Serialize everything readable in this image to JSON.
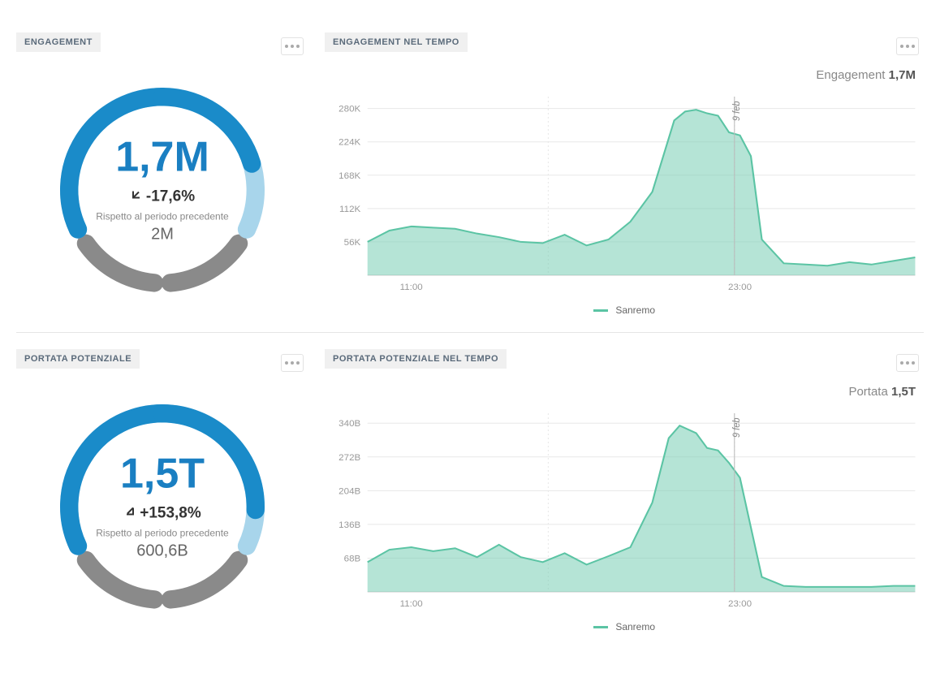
{
  "engagement": {
    "title": "ENGAGEMENT",
    "gauge": {
      "value": "1,7M",
      "change_text": "-17,6%",
      "change_direction": "down",
      "sub_label": "Rispetto al periodo precedente",
      "prev_value": "2M",
      "value_color": "#1a7fc2",
      "arc_primary_color": "#1a8bc9",
      "arc_secondary_color": "#a8d5eb",
      "arc_track_color": "#8a8a8a",
      "fill_ratio": 0.82
    },
    "chart": {
      "title": "ENGAGEMENT NEL TEMPO",
      "header_label": "Engagement",
      "header_value": "1,7M",
      "series_name": "Sanremo",
      "series_color": "#5bc4a4",
      "fill_color": "rgba(121, 206, 180, 0.55)",
      "grid_color": "#e8e8e8",
      "y_ticks": [
        "56K",
        "112K",
        "168K",
        "224K",
        "280K"
      ],
      "y_values": [
        56,
        112,
        168,
        224,
        280
      ],
      "y_max": 300,
      "x_ticks": [
        "11:00",
        "23:00"
      ],
      "x_tick_positions": [
        0.08,
        0.68
      ],
      "marker_label": "9 feb",
      "marker_x": 0.67,
      "data": [
        [
          0.0,
          56
        ],
        [
          0.04,
          75
        ],
        [
          0.08,
          82
        ],
        [
          0.12,
          80
        ],
        [
          0.16,
          78
        ],
        [
          0.2,
          70
        ],
        [
          0.24,
          64
        ],
        [
          0.28,
          56
        ],
        [
          0.32,
          54
        ],
        [
          0.36,
          68
        ],
        [
          0.4,
          50
        ],
        [
          0.44,
          60
        ],
        [
          0.48,
          90
        ],
        [
          0.52,
          140
        ],
        [
          0.56,
          260
        ],
        [
          0.58,
          275
        ],
        [
          0.6,
          278
        ],
        [
          0.62,
          272
        ],
        [
          0.64,
          268
        ],
        [
          0.66,
          240
        ],
        [
          0.68,
          235
        ],
        [
          0.7,
          200
        ],
        [
          0.72,
          60
        ],
        [
          0.76,
          20
        ],
        [
          0.8,
          18
        ],
        [
          0.84,
          16
        ],
        [
          0.88,
          22
        ],
        [
          0.92,
          18
        ],
        [
          0.96,
          24
        ],
        [
          1.0,
          30
        ]
      ]
    }
  },
  "reach": {
    "title": "PORTATA POTENZIALE",
    "gauge": {
      "value": "1,5T",
      "change_text": "+153,8%",
      "change_direction": "up",
      "sub_label": "Rispetto al periodo precedente",
      "prev_value": "600,6B",
      "value_color": "#1a7fc2",
      "arc_primary_color": "#1a8bc9",
      "arc_secondary_color": "#a8d5eb",
      "arc_track_color": "#8a8a8a",
      "fill_ratio": 0.9
    },
    "chart": {
      "title": "PORTATA POTENZIALE NEL TEMPO",
      "header_label": "Portata",
      "header_value": "1,5T",
      "series_name": "Sanremo",
      "series_color": "#5bc4a4",
      "fill_color": "rgba(121, 206, 180, 0.55)",
      "grid_color": "#e8e8e8",
      "y_ticks": [
        "68B",
        "136B",
        "204B",
        "272B",
        "340B"
      ],
      "y_values": [
        68,
        136,
        204,
        272,
        340
      ],
      "y_max": 360,
      "x_ticks": [
        "11:00",
        "23:00"
      ],
      "x_tick_positions": [
        0.08,
        0.68
      ],
      "marker_label": "9 feb",
      "marker_x": 0.67,
      "data": [
        [
          0.0,
          60
        ],
        [
          0.04,
          85
        ],
        [
          0.08,
          90
        ],
        [
          0.12,
          82
        ],
        [
          0.16,
          88
        ],
        [
          0.2,
          70
        ],
        [
          0.24,
          95
        ],
        [
          0.28,
          70
        ],
        [
          0.32,
          60
        ],
        [
          0.36,
          78
        ],
        [
          0.4,
          55
        ],
        [
          0.44,
          72
        ],
        [
          0.48,
          90
        ],
        [
          0.52,
          180
        ],
        [
          0.55,
          310
        ],
        [
          0.57,
          335
        ],
        [
          0.6,
          320
        ],
        [
          0.62,
          290
        ],
        [
          0.64,
          285
        ],
        [
          0.66,
          260
        ],
        [
          0.68,
          230
        ],
        [
          0.7,
          130
        ],
        [
          0.72,
          30
        ],
        [
          0.76,
          12
        ],
        [
          0.8,
          10
        ],
        [
          0.84,
          10
        ],
        [
          0.88,
          10
        ],
        [
          0.92,
          10
        ],
        [
          0.96,
          12
        ],
        [
          1.0,
          12
        ]
      ]
    }
  }
}
